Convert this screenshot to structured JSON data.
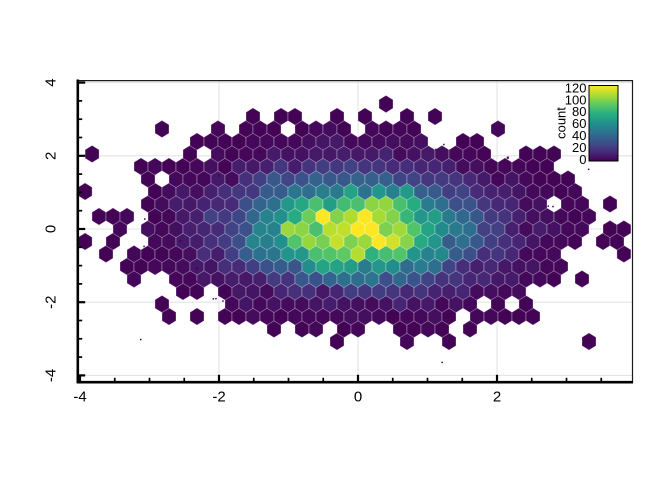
{
  "figure": {
    "background": "#ffffff"
  },
  "chart_data": {
    "type": "hexbin",
    "description": "2D hexagonal-binning density plot of a bivariate normal point cloud centered at the origin",
    "x_ticks": [
      -4,
      -2,
      0,
      2
    ],
    "y_ticks": [
      -4,
      -2,
      0,
      2,
      4
    ],
    "minor_tick_step": 0.5,
    "x_range": [
      -4.03,
      3.95
    ],
    "y_range": [
      -4.18,
      4.07
    ],
    "grid": true,
    "colormap": {
      "name": "viridis",
      "stops": [
        "#440154",
        "#472d7b",
        "#3b528b",
        "#2c728e",
        "#21918c",
        "#28ae80",
        "#5ec962",
        "#addc30",
        "#fde725"
      ]
    },
    "legend": {
      "label": "count",
      "ticks": [
        0,
        20,
        40,
        60,
        80,
        100,
        120
      ],
      "scale_max": 125,
      "position": "top-right-inside"
    },
    "distribution": {
      "model": "bivariate-normal",
      "center": [
        0,
        0
      ],
      "sigma_x": 1.06,
      "sigma_y": 0.92,
      "peak_bin_count": 122,
      "seed": 11
    },
    "hex_bin": {
      "x_width_data": 0.2014,
      "row_step_data": 0.3415
    },
    "outlier_dots": {
      "count": 55,
      "min_radius_sigma": 2.42
    }
  },
  "axes_style": {
    "grid_color": "#e4e4e4",
    "frame_color": "#1c1c1c",
    "axis_color": "#000000",
    "hex_stroke": "rgba(255,255,255,0.40)",
    "dot_color": "#440154",
    "label_color": "#000000"
  }
}
